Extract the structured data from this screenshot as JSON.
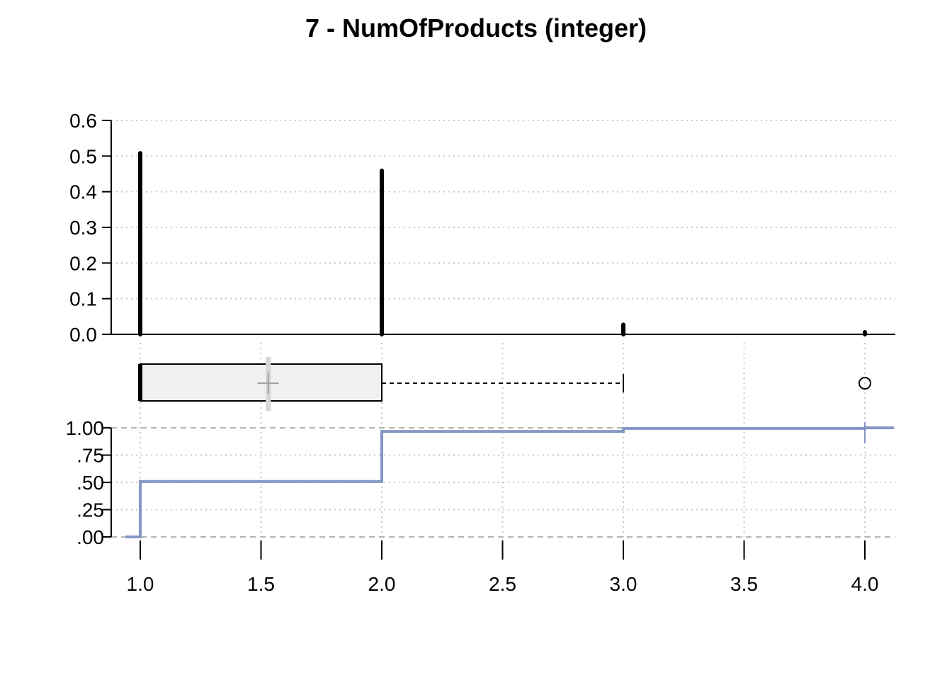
{
  "chart_data": {
    "type": "bar",
    "title": "7 - NumOfProducts (integer)",
    "xlabel": "",
    "ylabel": "",
    "x_ticks": [
      "1.0",
      "1.5",
      "2.0",
      "2.5",
      "3.0",
      "3.5",
      "4.0"
    ],
    "x_tick_values": [
      1.0,
      1.5,
      2.0,
      2.5,
      3.0,
      3.5,
      4.0
    ],
    "xlim": [
      0.88,
      4.12
    ],
    "grid": true,
    "panels": {
      "frequency": {
        "type": "bar",
        "ylim": [
          0,
          0.6
        ],
        "y_ticks": [
          "0.0",
          "0.1",
          "0.2",
          "0.3",
          "0.4",
          "0.5",
          "0.6"
        ],
        "y_tick_values": [
          0,
          0.1,
          0.2,
          0.3,
          0.4,
          0.5,
          0.6
        ],
        "x": [
          1,
          2,
          3,
          4
        ],
        "values": [
          0.508,
          0.459,
          0.027,
          0.006
        ]
      },
      "boxplot": {
        "type": "box",
        "min": 1,
        "q1": 1,
        "median": 1,
        "q3": 2,
        "whisker_high": 3,
        "mean": 1.53,
        "outliers": [
          4
        ]
      },
      "ecdf": {
        "type": "line",
        "ylim": [
          0,
          1
        ],
        "y_ticks": [
          ".00",
          ".25",
          ".50",
          ".75",
          "1.00"
        ],
        "y_tick_values": [
          0,
          0.25,
          0.5,
          0.75,
          1.0
        ],
        "x": [
          1,
          2,
          3,
          4
        ],
        "values": [
          0.508,
          0.967,
          0.994,
          1.0
        ]
      }
    },
    "colors": {
      "bars": "#000000",
      "ecdf": "#8496c4",
      "box_fill": "#f0f0f0",
      "grid": "#c8c8c8",
      "mean_marker": "#a0a0a0"
    }
  }
}
